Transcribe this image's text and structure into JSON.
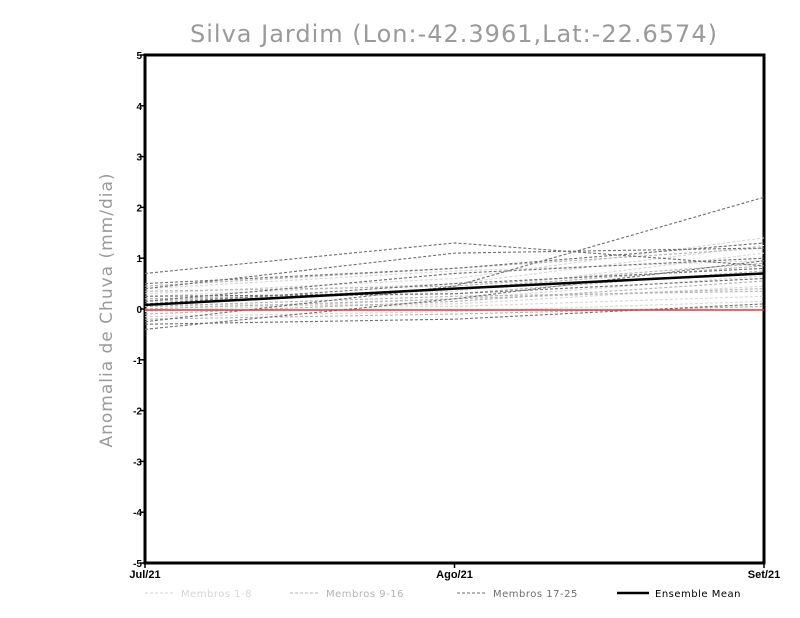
{
  "chart_data": {
    "type": "line",
    "title": "Silva Jardim (Lon:-42.3961,Lat:-22.6574)",
    "ylabel": "Anomalia de Chuva (mm/dia)",
    "xlabel": "",
    "categories": [
      "Jul/21",
      "Ago/21",
      "Set/21"
    ],
    "ylim": [
      -5,
      5
    ],
    "yticks": [
      "-5",
      "-4",
      "-3",
      "-2",
      "-1",
      "0",
      "1",
      "2",
      "3",
      "4",
      "5"
    ],
    "grid": false,
    "legend_position": "bottom",
    "groups": [
      {
        "label": "Membros 1-8",
        "color": "#d6d6d6"
      },
      {
        "label": "Membros 9-16",
        "color": "#b3b3b3"
      },
      {
        "label": "Membros 17-25",
        "color": "#6e6e6e"
      }
    ],
    "series": [
      {
        "group": 0,
        "values": [
          0.3,
          0.6,
          1.4
        ]
      },
      {
        "group": 0,
        "values": [
          0.2,
          0.35,
          1.1
        ]
      },
      {
        "group": 0,
        "values": [
          0.05,
          0.1,
          0.45
        ]
      },
      {
        "group": 0,
        "values": [
          -0.05,
          0.2,
          0.65
        ]
      },
      {
        "group": 0,
        "values": [
          0.4,
          0.75,
          0.95
        ]
      },
      {
        "group": 0,
        "values": [
          0.1,
          0.05,
          0.25
        ]
      },
      {
        "group": 0,
        "values": [
          -0.15,
          -0.05,
          0.15
        ]
      },
      {
        "group": 0,
        "values": [
          0.25,
          0.5,
          1.25
        ]
      },
      {
        "group": 1,
        "values": [
          0.45,
          0.8,
          1.2
        ]
      },
      {
        "group": 1,
        "values": [
          0.15,
          0.4,
          0.85
        ]
      },
      {
        "group": 1,
        "values": [
          -0.1,
          0.15,
          0.55
        ]
      },
      {
        "group": 1,
        "values": [
          0.05,
          0.25,
          0.35
        ]
      },
      {
        "group": 1,
        "values": [
          0.35,
          0.45,
          0.9
        ]
      },
      {
        "group": 1,
        "values": [
          -0.2,
          -0.1,
          0.05
        ]
      },
      {
        "group": 1,
        "values": [
          0.2,
          0.3,
          0.75
        ]
      },
      {
        "group": 1,
        "values": [
          0.0,
          0.2,
          0.4
        ]
      },
      {
        "group": 2,
        "values": [
          0.7,
          1.3,
          0.85
        ]
      },
      {
        "group": 2,
        "values": [
          0.5,
          0.8,
          1.3
        ]
      },
      {
        "group": 2,
        "values": [
          -0.25,
          0.45,
          2.2
        ]
      },
      {
        "group": 2,
        "values": [
          0.4,
          1.1,
          1.2
        ]
      },
      {
        "group": 2,
        "values": [
          -0.3,
          -0.2,
          0.1
        ]
      },
      {
        "group": 2,
        "values": [
          0.15,
          0.7,
          1.0
        ]
      },
      {
        "group": 2,
        "values": [
          -0.4,
          0.2,
          0.95
        ]
      },
      {
        "group": 2,
        "values": [
          0.1,
          0.5,
          0.8
        ]
      },
      {
        "group": 2,
        "values": [
          0.25,
          0.3,
          0.6
        ]
      }
    ],
    "ensemble_mean": {
      "name": "Ensemble Mean",
      "values": [
        0.08,
        0.4,
        0.7
      ],
      "color": "#000000"
    },
    "zero_line": {
      "values": [
        -0.02,
        -0.02,
        -0.02
      ],
      "color": "#ee3333"
    }
  }
}
